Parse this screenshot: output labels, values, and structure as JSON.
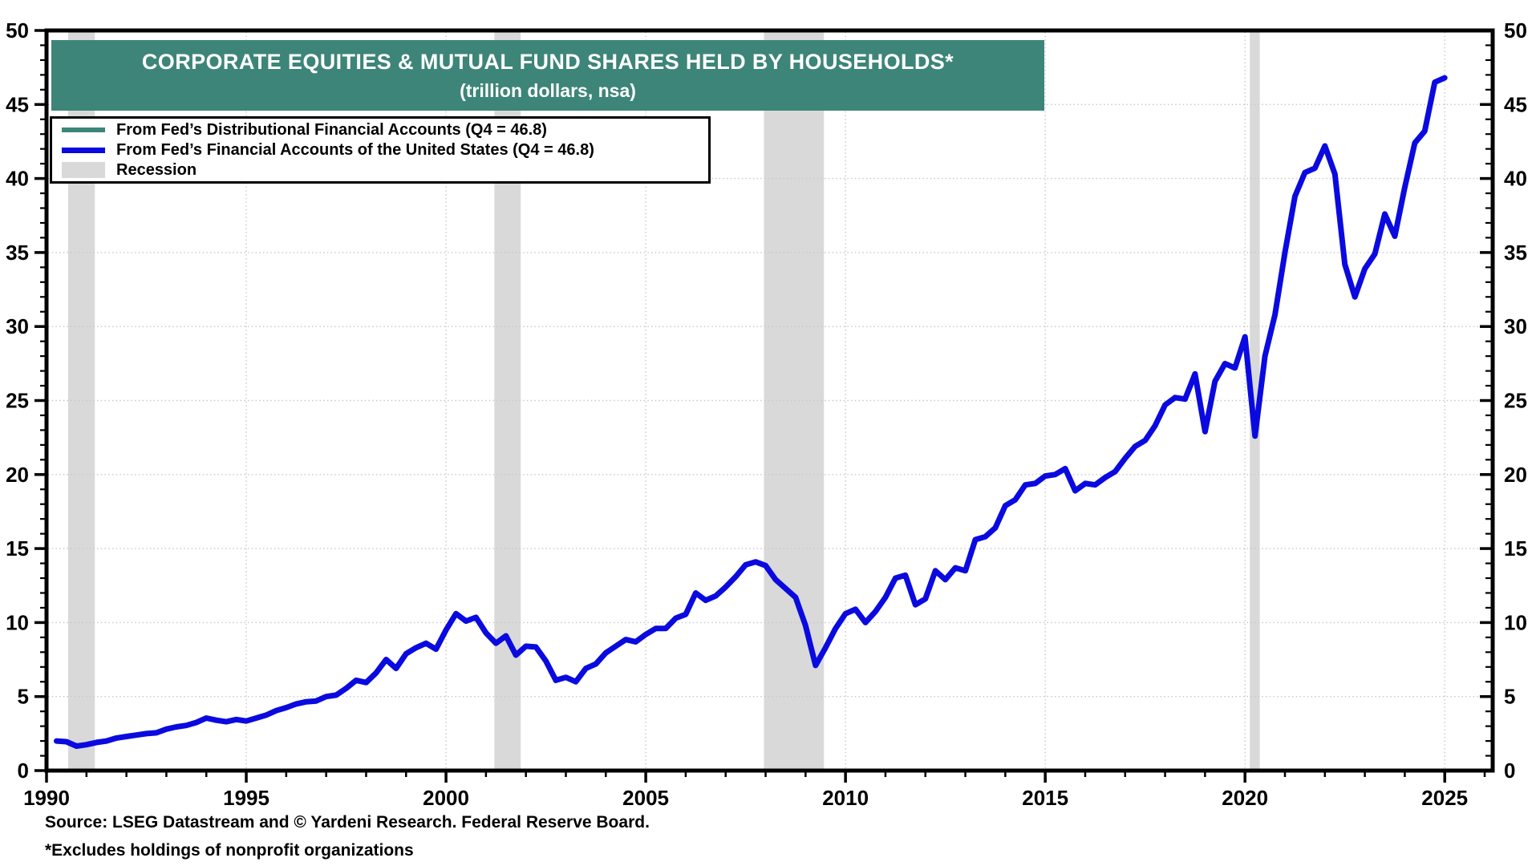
{
  "title": {
    "line1": "CORPORATE EQUITIES & MUTUAL FUND SHARES HELD BY HOUSEHOLDS*",
    "line2": "(trillion dollars, nsa)"
  },
  "legend": {
    "items": [
      {
        "label": "From Fed’s Distributional Financial Accounts (Q4 = 46.8)",
        "swatch": "line",
        "color": "#3D8578"
      },
      {
        "label": "From Fed’s Financial Accounts of the United States (Q4 = 46.8)",
        "swatch": "line",
        "color": "#0A0AE0"
      },
      {
        "label": "Recession",
        "swatch": "band",
        "color": "#D9D9D9"
      }
    ]
  },
  "footer": {
    "source": "Source: LSEG Datastream and © Yardeni Research. Federal Reserve Board.",
    "footnote": "*Excludes holdings of nonprofit organizations"
  },
  "colors": {
    "accent_teal": "#3D8578",
    "line_blue": "#0A0AE0",
    "recession_gray": "#D9D9D9",
    "grid": "#C8C8C8",
    "frame": "#000000",
    "background": "#FFFFFF"
  },
  "chart_data": {
    "type": "line",
    "title": "CORPORATE EQUITIES & MUTUAL FUND SHARES HELD BY HOUSEHOLDS* (trillion dollars, nsa)",
    "xlabel": "",
    "ylabel": "trillion dollars",
    "xlim": [
      1990,
      2026.2
    ],
    "ylim": [
      0,
      50
    ],
    "x_ticks_major": [
      1990,
      1995,
      2000,
      2005,
      2010,
      2015,
      2020,
      2025
    ],
    "x_minor_step": 1,
    "y_ticks_major": [
      0,
      5,
      10,
      15,
      20,
      25,
      30,
      35,
      40,
      45,
      50
    ],
    "y_minor_step": 1,
    "grid": "dotted light-gray at every 5-unit level and every 5-year mark",
    "legend_position": "top-left",
    "x_quarters": {
      "first": "1990Q1",
      "last": "2024Q4",
      "step_years": 0.25
    },
    "recession_bands": [
      [
        1990.54,
        1991.21
      ],
      [
        2001.21,
        2001.87
      ],
      [
        2007.96,
        2009.46
      ],
      [
        2020.12,
        2020.37
      ]
    ],
    "series": [
      {
        "name": "From Fed’s Distributional Financial Accounts",
        "color": "#3D8578",
        "last_point_label": "Q4 = 46.8",
        "values_same_as": 1,
        "note": "coincides exactly with the Financial Accounts line and is hidden beneath it"
      },
      {
        "name": "From Fed’s Financial Accounts of the United States",
        "color": "#0A0AE0",
        "last_point_label": "Q4 = 46.8",
        "values": [
          2.0,
          1.95,
          1.65,
          1.75,
          1.9,
          2.0,
          2.2,
          2.3,
          2.4,
          2.5,
          2.55,
          2.8,
          2.95,
          3.05,
          3.25,
          3.55,
          3.4,
          3.3,
          3.45,
          3.35,
          3.55,
          3.75,
          4.05,
          4.25,
          4.5,
          4.65,
          4.7,
          5.0,
          5.1,
          5.55,
          6.1,
          5.95,
          6.6,
          7.5,
          6.9,
          7.9,
          8.3,
          8.6,
          8.2,
          9.5,
          10.6,
          10.1,
          10.35,
          9.3,
          8.6,
          9.1,
          7.8,
          8.4,
          8.35,
          7.4,
          6.1,
          6.3,
          6.0,
          6.9,
          7.2,
          7.95,
          8.4,
          8.85,
          8.7,
          9.2,
          9.6,
          9.6,
          10.3,
          10.55,
          12.0,
          11.5,
          11.8,
          12.4,
          13.1,
          13.9,
          14.1,
          13.85,
          12.9,
          12.3,
          11.7,
          9.8,
          7.1,
          8.3,
          9.6,
          10.6,
          10.9,
          10.0,
          10.75,
          11.7,
          13.0,
          13.2,
          11.2,
          11.6,
          13.5,
          12.9,
          13.7,
          13.5,
          15.6,
          15.8,
          16.4,
          17.9,
          18.3,
          19.3,
          19.4,
          19.9,
          20.0,
          20.4,
          18.9,
          19.4,
          19.3,
          19.8,
          20.2,
          21.1,
          21.9,
          22.3,
          23.3,
          24.7,
          25.2,
          25.1,
          26.8,
          22.9,
          26.3,
          27.5,
          27.2,
          29.3,
          22.6,
          28.0,
          30.8,
          35.0,
          38.8,
          40.4,
          40.7,
          42.2,
          40.3,
          34.2,
          32.0,
          33.9,
          34.9,
          37.6,
          36.1,
          39.4,
          42.4,
          43.2,
          46.5,
          46.8
        ]
      }
    ]
  }
}
